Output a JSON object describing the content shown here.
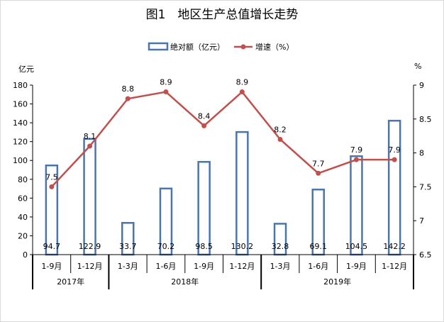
{
  "chart_data": {
    "type": "bar+line",
    "title": "图1　地区生产总值增长走势",
    "categories": [
      "1-9月",
      "1-12月",
      "1-3月",
      "1-6月",
      "1-9月",
      "1-12月",
      "1-3月",
      "1-6月",
      "1-9月",
      "1-12月"
    ],
    "year_groups": [
      {
        "label": "2017年",
        "count": 2
      },
      {
        "label": "2018年",
        "count": 4
      },
      {
        "label": "2019年",
        "count": 4
      }
    ],
    "series": [
      {
        "name": "绝对额（亿元）",
        "type": "bar",
        "axis": "left",
        "values": [
          94.7,
          122.9,
          33.7,
          70.2,
          98.5,
          130.2,
          32.8,
          69.1,
          104.5,
          142.2
        ],
        "labels": [
          "94.7",
          "122.9",
          "33.7",
          "70.2",
          "98.5",
          "130.2",
          "32.8",
          "69.1",
          "104.5",
          "142.2"
        ]
      },
      {
        "name": "增速（%）",
        "type": "line",
        "axis": "right",
        "values": [
          7.5,
          8.1,
          8.8,
          8.9,
          8.4,
          8.9,
          8.2,
          7.7,
          7.9,
          7.9
        ],
        "labels": [
          "7.5",
          "8.1",
          "8.8",
          "8.9",
          "8.4",
          "8.9",
          "8.2",
          "7.7",
          "7.9",
          "7.9"
        ]
      }
    ],
    "left_axis": {
      "label": "亿元",
      "min": 0,
      "max": 180,
      "ticks": [
        "0",
        "20",
        "40",
        "60",
        "80",
        "100",
        "120",
        "140",
        "160",
        "180"
      ]
    },
    "right_axis": {
      "label": "%",
      "min": 6.5,
      "max": 9,
      "ticks": [
        "6.5",
        "7",
        "7.5",
        "8",
        "8.5",
        "9"
      ]
    },
    "grid": false,
    "legend_position": "top-center",
    "colors": {
      "bar_edge": "#4a76b0",
      "bar_fill": "#ffffff",
      "line": "#c0504d",
      "axis": "#000000"
    }
  }
}
